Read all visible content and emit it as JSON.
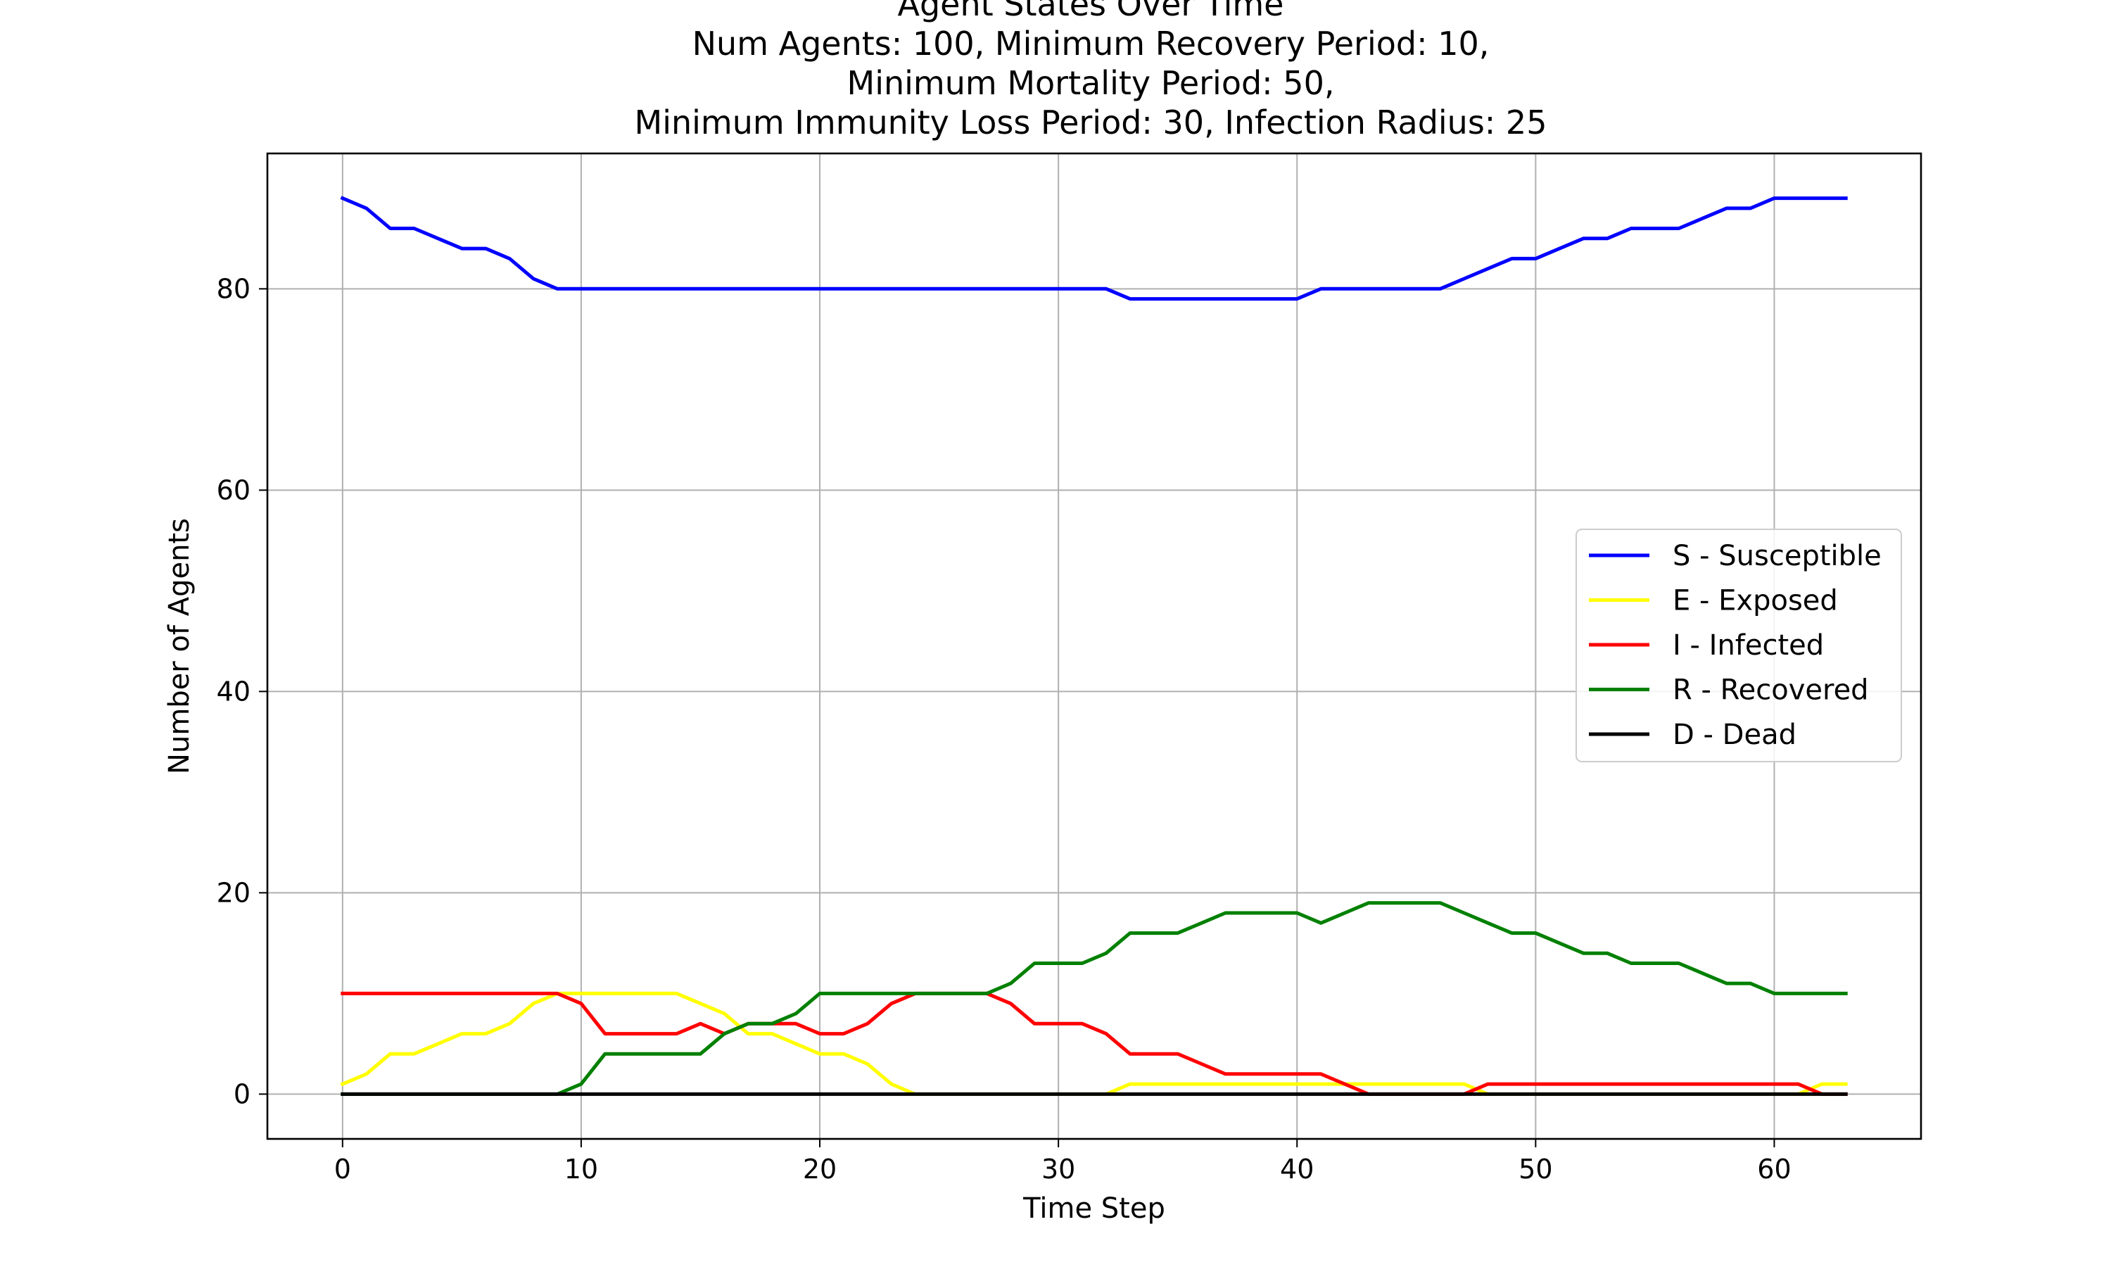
{
  "chart_data": {
    "type": "line",
    "title_lines": [
      "Agent States Over Time",
      "Num Agents: 100, Minimum Recovery Period: 10,",
      "Minimum Mortality Period: 50,",
      "Minimum Immunity Loss Period: 30, Infection Radius: 25"
    ],
    "xlabel": "Time Step",
    "ylabel": "Number of Agents",
    "xlim": [
      -3.15,
      66.15
    ],
    "ylim": [
      -4.45,
      93.45
    ],
    "xticks": [
      0,
      10,
      20,
      30,
      40,
      50,
      60
    ],
    "yticks": [
      0,
      20,
      40,
      60,
      80
    ],
    "grid": true,
    "legend_position": "center-right",
    "x": [
      0,
      1,
      2,
      3,
      4,
      5,
      6,
      7,
      8,
      9,
      10,
      11,
      12,
      13,
      14,
      15,
      16,
      17,
      18,
      19,
      20,
      21,
      22,
      23,
      24,
      25,
      26,
      27,
      28,
      29,
      30,
      31,
      32,
      33,
      34,
      35,
      36,
      37,
      38,
      39,
      40,
      41,
      42,
      43,
      44,
      45,
      46,
      47,
      48,
      49,
      50,
      51,
      52,
      53,
      54,
      55,
      56,
      57,
      58,
      59,
      60,
      61,
      62,
      63
    ],
    "series": [
      {
        "name": "S - Susceptible",
        "color": "#0000ff",
        "values": [
          89,
          88,
          86,
          86,
          85,
          84,
          84,
          83,
          81,
          80,
          80,
          80,
          80,
          80,
          80,
          80,
          80,
          80,
          80,
          80,
          80,
          80,
          80,
          80,
          80,
          80,
          80,
          80,
          80,
          80,
          80,
          80,
          80,
          79,
          79,
          79,
          79,
          79,
          79,
          79,
          79,
          80,
          80,
          80,
          80,
          80,
          80,
          81,
          82,
          83,
          83,
          84,
          85,
          85,
          86,
          86,
          86,
          87,
          88,
          88,
          89,
          89,
          89,
          89
        ]
      },
      {
        "name": "E - Exposed",
        "color": "#ffff00",
        "values": [
          1,
          2,
          4,
          4,
          5,
          6,
          6,
          7,
          9,
          10,
          10,
          10,
          10,
          10,
          10,
          9,
          8,
          6,
          6,
          5,
          4,
          4,
          3,
          1,
          0,
          0,
          0,
          0,
          0,
          0,
          0,
          0,
          0,
          1,
          1,
          1,
          1,
          1,
          1,
          1,
          1,
          1,
          1,
          1,
          1,
          1,
          1,
          1,
          0,
          0,
          0,
          0,
          0,
          0,
          0,
          0,
          0,
          0,
          0,
          0,
          0,
          0,
          1,
          1
        ]
      },
      {
        "name": "I - Infected",
        "color": "#ff0000",
        "values": [
          10,
          10,
          10,
          10,
          10,
          10,
          10,
          10,
          10,
          10,
          9,
          6,
          6,
          6,
          6,
          7,
          6,
          7,
          7,
          7,
          6,
          6,
          7,
          9,
          10,
          10,
          10,
          10,
          9,
          7,
          7,
          7,
          6,
          4,
          4,
          4,
          3,
          2,
          2,
          2,
          2,
          2,
          1,
          0,
          0,
          0,
          0,
          0,
          1,
          1,
          1,
          1,
          1,
          1,
          1,
          1,
          1,
          1,
          1,
          1,
          1,
          1,
          0,
          0
        ]
      },
      {
        "name": "R - Recovered",
        "color": "#008000",
        "values": [
          0,
          0,
          0,
          0,
          0,
          0,
          0,
          0,
          0,
          0,
          1,
          4,
          4,
          4,
          4,
          4,
          6,
          7,
          7,
          8,
          10,
          10,
          10,
          10,
          10,
          10,
          10,
          10,
          11,
          13,
          13,
          13,
          14,
          16,
          16,
          16,
          17,
          18,
          18,
          18,
          18,
          17,
          18,
          19,
          19,
          19,
          19,
          18,
          17,
          16,
          16,
          15,
          14,
          14,
          13,
          13,
          13,
          12,
          11,
          11,
          10,
          10,
          10,
          10
        ]
      },
      {
        "name": "D - Dead",
        "color": "#000000",
        "values": [
          0,
          0,
          0,
          0,
          0,
          0,
          0,
          0,
          0,
          0,
          0,
          0,
          0,
          0,
          0,
          0,
          0,
          0,
          0,
          0,
          0,
          0,
          0,
          0,
          0,
          0,
          0,
          0,
          0,
          0,
          0,
          0,
          0,
          0,
          0,
          0,
          0,
          0,
          0,
          0,
          0,
          0,
          0,
          0,
          0,
          0,
          0,
          0,
          0,
          0,
          0,
          0,
          0,
          0,
          0,
          0,
          0,
          0,
          0,
          0,
          0,
          0,
          0,
          0
        ]
      }
    ]
  }
}
